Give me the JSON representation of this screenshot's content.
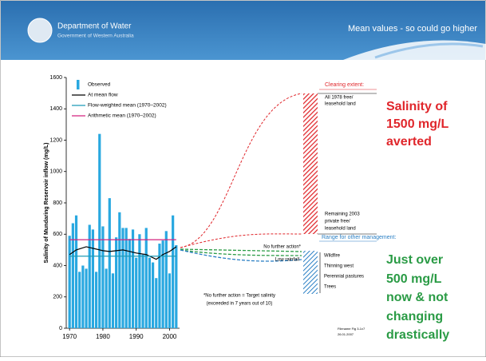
{
  "header": {
    "org": "Department of Water",
    "org_sub": "Government of Western Australia",
    "title": "Mean values - so could go higher"
  },
  "chart_data": {
    "type": "bar",
    "y_label": "Salinity of Mundaring Reservoir inflow (mg/L)",
    "x": [
      1970,
      1971,
      1972,
      1973,
      1974,
      1975,
      1976,
      1977,
      1978,
      1979,
      1980,
      1981,
      1982,
      1983,
      1984,
      1985,
      1986,
      1987,
      1988,
      1989,
      1990,
      1991,
      1992,
      1993,
      1994,
      1995,
      1996,
      1997,
      1998,
      1999,
      2000,
      2001,
      2002
    ],
    "xlim": [
      1969,
      2003
    ],
    "xticks": [
      1970,
      1980,
      1990,
      2000
    ],
    "ylim": [
      0,
      1600
    ],
    "yticks": [
      0,
      200,
      400,
      600,
      800,
      1000,
      1200,
      1400,
      1600
    ],
    "series": [
      {
        "name": "Observed",
        "type": "bar",
        "color": "#29a8e0",
        "values": [
          590,
          670,
          720,
          360,
          400,
          380,
          660,
          630,
          360,
          1240,
          650,
          380,
          830,
          350,
          580,
          740,
          640,
          640,
          570,
          630,
          450,
          600,
          470,
          640,
          450,
          420,
          320,
          540,
          560,
          620,
          350,
          720,
          530
        ]
      },
      {
        "name": "At mean flow",
        "type": "line",
        "color": "#000000",
        "x": [
          1970,
          1972,
          1975,
          1978,
          1980,
          1982,
          1984,
          1986,
          1988,
          1990,
          1993,
          1996,
          1998,
          2000,
          2002
        ],
        "values": [
          470,
          500,
          520,
          505,
          495,
          490,
          495,
          500,
          490,
          480,
          470,
          440,
          470,
          490,
          520
        ]
      },
      {
        "name": "Flow-weighted mean (1970–2002)",
        "type": "line",
        "color": "#1c9bb8",
        "x": [
          1970,
          2002
        ],
        "values": [
          460,
          460
        ]
      },
      {
        "name": "Arithmetic mean (1970–2002)",
        "type": "line",
        "color": "#d4237f",
        "x": [
          1970,
          2002
        ],
        "values": [
          565,
          565
        ]
      }
    ]
  },
  "annotations": {
    "clearing_title": "Clearing extent:",
    "clearing_top": [
      "All 1978 free/",
      "leasehold land"
    ],
    "clearing_bottom": [
      "Remaining 2003",
      "private free/",
      "leasehold land"
    ],
    "range_title": "Range for other management:",
    "range_items": [
      "Wildfire",
      "Thinning west",
      "Perennial pastures",
      "Trees"
    ],
    "no_action": "No further action*",
    "low_rainfall": "Low rainfall",
    "footnote": [
      "*No further action = Target salinity",
      "(exceeded in 7 years out of 10)"
    ],
    "filename": [
      "Filename Fig 3-1v7",
      "26.01.2007"
    ]
  },
  "callouts": {
    "red": [
      "Salinity of",
      "1500 mg/L",
      "averted"
    ],
    "green": [
      "Just over",
      "500 mg/L",
      "now & not",
      "changing",
      "drastically"
    ]
  }
}
